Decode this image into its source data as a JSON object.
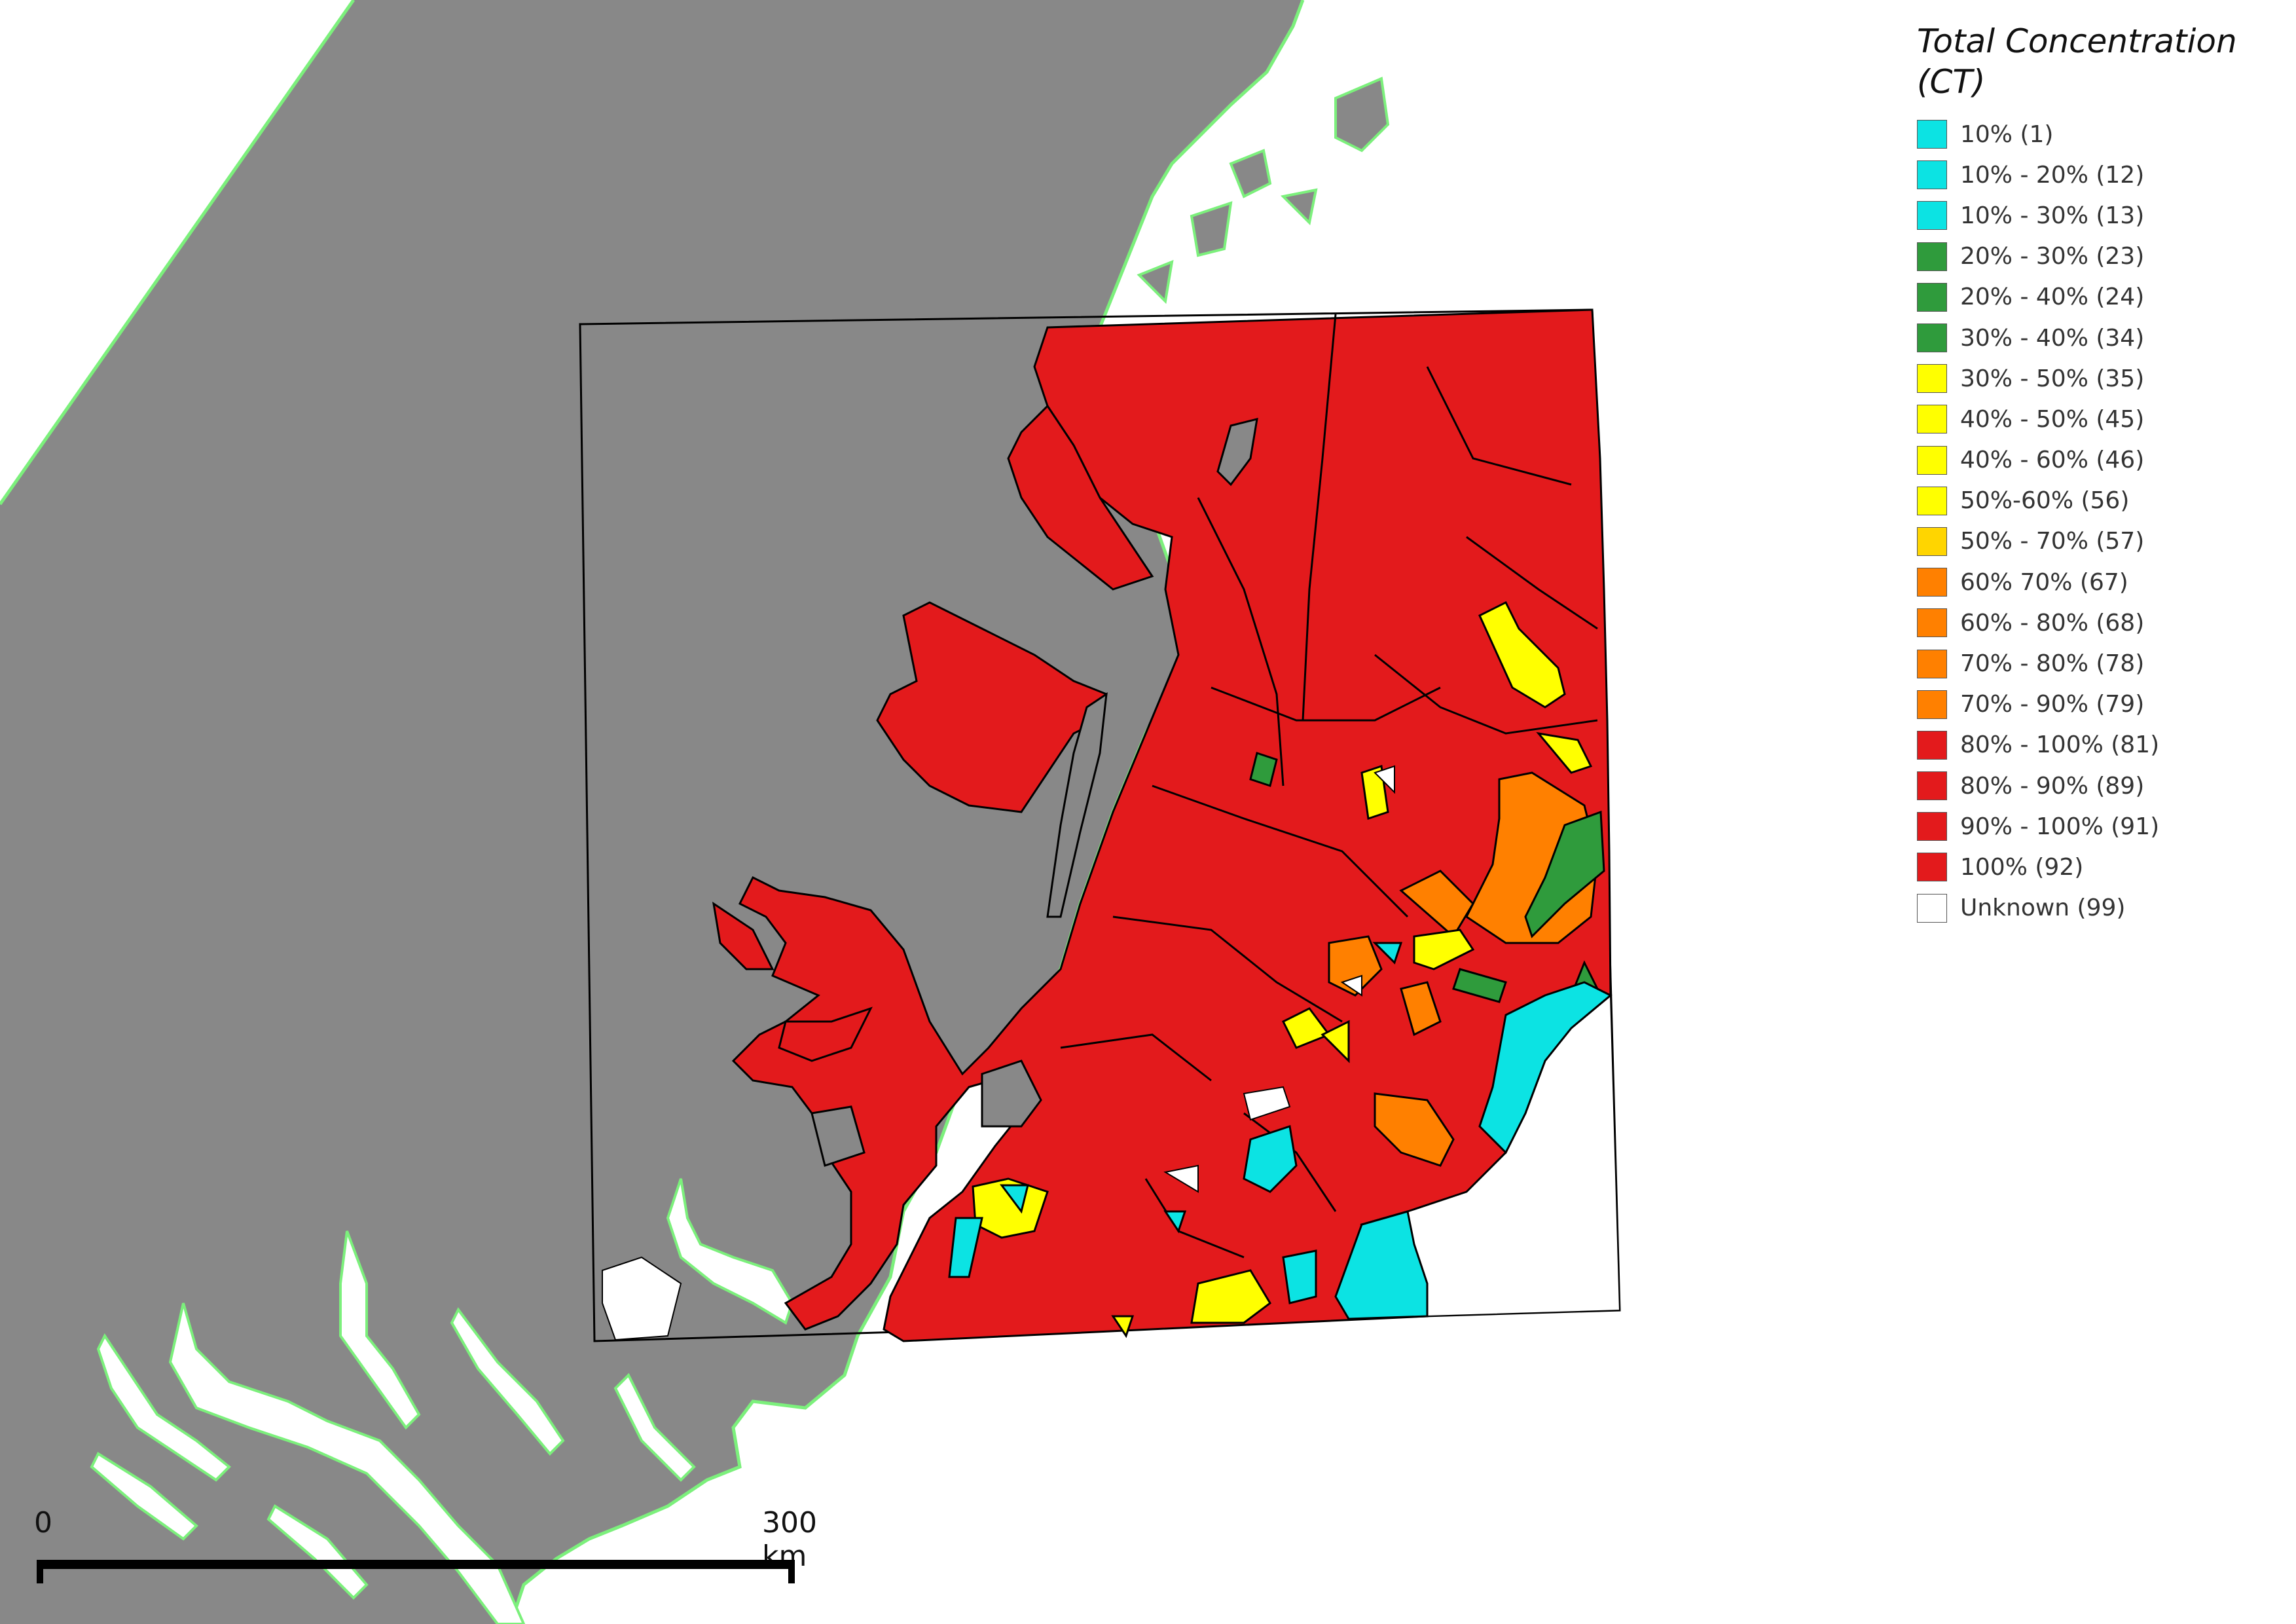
{
  "legend": {
    "title": "Total Concentration\n(CT)",
    "items": [
      {
        "label": "10% (1)",
        "color": "#0ce3e3"
      },
      {
        "label": "10% - 20% (12)",
        "color": "#0ce3e3"
      },
      {
        "label": "10% - 30% (13)",
        "color": "#0ce3e3"
      },
      {
        "label": "20% - 30% (23)",
        "color": "#2f9b3c"
      },
      {
        "label": "20% - 40% (24)",
        "color": "#2f9b3c"
      },
      {
        "label": "30% - 40% (34)",
        "color": "#2f9b3c"
      },
      {
        "label": "30% - 50% (35)",
        "color": "#ffff00"
      },
      {
        "label": "40% - 50% (45)",
        "color": "#ffff00"
      },
      {
        "label": "40% - 60% (46)",
        "color": "#ffff00"
      },
      {
        "label": "50%-60% (56)",
        "color": "#ffff00"
      },
      {
        "label": "50% - 70% (57)",
        "color": "#ffd500"
      },
      {
        "label": "60% 70% (67)",
        "color": "#ff8000"
      },
      {
        "label": "60% - 80% (68)",
        "color": "#ff8000"
      },
      {
        "label": "70% - 80% (78)",
        "color": "#ff8000"
      },
      {
        "label": "70% - 90% (79)",
        "color": "#ff8000"
      },
      {
        "label": "80% - 100% (81)",
        "color": "#e31a1c"
      },
      {
        "label": "80% - 90% (89)",
        "color": "#e31a1c"
      },
      {
        "label": "90% - 100% (91)",
        "color": "#e31a1c"
      },
      {
        "label": "100% (92)",
        "color": "#e31a1c"
      },
      {
        "label": "Unknown (99)",
        "color": "#ffffff"
      }
    ]
  },
  "scale_bar": {
    "start_label": "0",
    "end_label": "300 km"
  },
  "colors": {
    "land": "#888888",
    "coastline": "#7cf07c",
    "ice_high": "#e31a1c",
    "ice_orange": "#ff8000",
    "ice_yellow": "#ffff00",
    "ice_green": "#2f9b3c",
    "ice_cyan": "#0ce3e3",
    "open_water": "#ffffff"
  }
}
